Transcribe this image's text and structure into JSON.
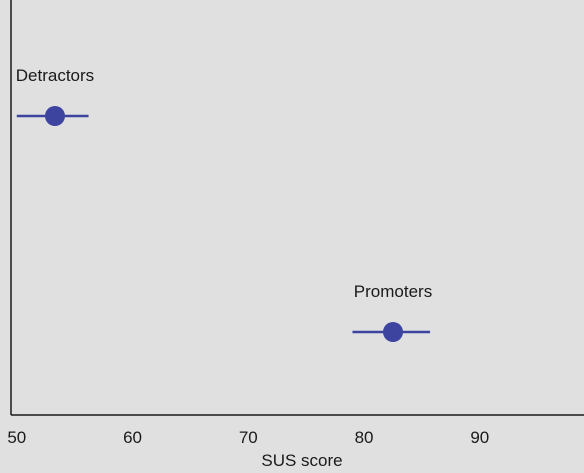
{
  "chart_data": {
    "type": "scatter",
    "title": "",
    "xlabel": "SUS score",
    "ylabel": "",
    "xlim": [
      49.5,
      99
    ],
    "x_ticks": [
      50,
      60,
      70,
      80,
      90
    ],
    "grid": false,
    "legend": "none",
    "marker_color": "#3d44a0",
    "background": "#e0e0e0",
    "groups": [
      {
        "label": "Detractors",
        "mean": 53.3,
        "ci_low": 50.0,
        "ci_high": 56.2
      },
      {
        "label": "Promoters",
        "mean": 82.5,
        "ci_low": 79.0,
        "ci_high": 85.7
      }
    ]
  }
}
